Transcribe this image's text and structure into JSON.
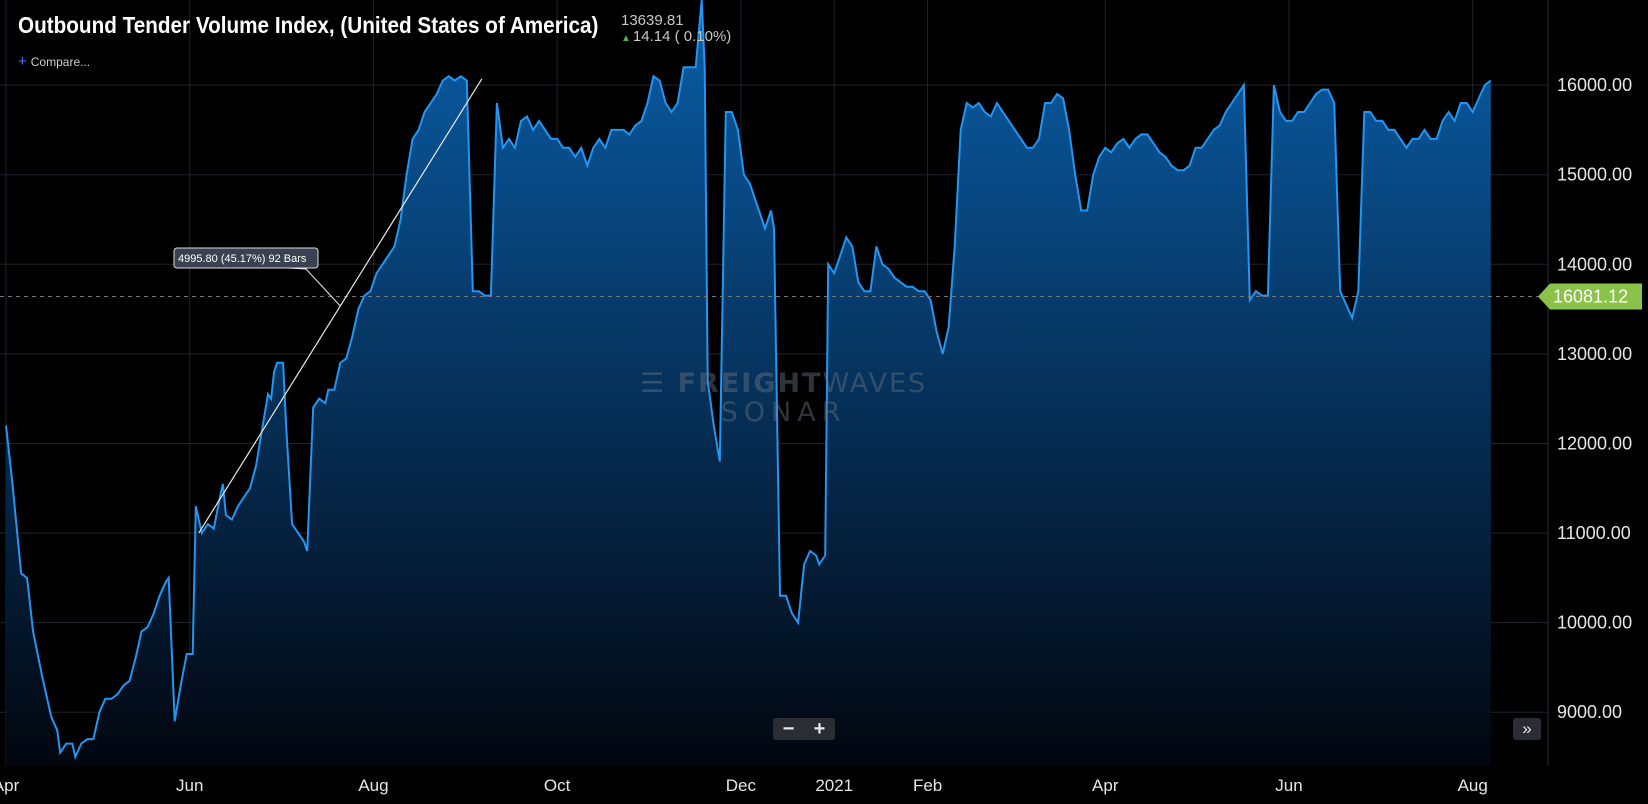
{
  "header": {
    "title": "Outbound Tender Volume Index, (United States of America)",
    "price": "13639.81",
    "change": "14.14 ( 0.10%)",
    "compare_label": "Compare..."
  },
  "watermark": {
    "line1_bold": "FREIGHT",
    "line1_thin": "WAVES",
    "line2": "SONAR"
  },
  "controls": {
    "zoom_out": "−",
    "zoom_in": "+",
    "scroll_right": "»"
  },
  "colors": {
    "line": "#2196f3",
    "fill_top": "#0a5ea8",
    "fill_bottom": "#02060f",
    "last_tag": "#8bc34a"
  },
  "chart_data": {
    "type": "area",
    "y_ticks": [
      "9000.00",
      "10000.00",
      "11000.00",
      "12000.00",
      "13000.00",
      "14000.00",
      "15000.00",
      "16000.00"
    ],
    "ylim": [
      8400,
      16950
    ],
    "x_ticks": [
      {
        "label": "Apr",
        "day": 0
      },
      {
        "label": "Jun",
        "day": 61
      },
      {
        "label": "Aug",
        "day": 122
      },
      {
        "label": "Oct",
        "day": 183
      },
      {
        "label": "Dec",
        "day": 244
      },
      {
        "label": "2021",
        "day": 275
      },
      {
        "label": "Feb",
        "day": 306
      },
      {
        "label": "Apr",
        "day": 365
      },
      {
        "label": "Jun",
        "day": 426
      },
      {
        "label": "Aug",
        "day": 487
      }
    ],
    "x_axis_range_days": [
      -2,
      512
    ],
    "grid": true,
    "crosshair_value": 13639.81,
    "last_value_tag": "16081.12",
    "annotation": {
      "label": "4995.80 (45.17%) 92 Bars",
      "start": {
        "day": 64,
        "value": 11000
      },
      "end": {
        "day": 158,
        "value": 16070
      }
    },
    "series": [
      {
        "points": [
          [
            0,
            12200
          ],
          [
            2,
            11600
          ],
          [
            4,
            10900
          ],
          [
            5,
            10550
          ],
          [
            7,
            10500
          ],
          [
            9,
            9900
          ],
          [
            12,
            9400
          ],
          [
            15,
            8950
          ],
          [
            17,
            8800
          ],
          [
            18,
            8550
          ],
          [
            20,
            8650
          ],
          [
            22,
            8650
          ],
          [
            23,
            8500
          ],
          [
            25,
            8650
          ],
          [
            27,
            8700
          ],
          [
            29,
            8700
          ],
          [
            31,
            9000
          ],
          [
            33,
            9150
          ],
          [
            35,
            9150
          ],
          [
            37,
            9200
          ],
          [
            39,
            9300
          ],
          [
            41,
            9350
          ],
          [
            43,
            9600
          ],
          [
            45,
            9900
          ],
          [
            47,
            9950
          ],
          [
            49,
            10100
          ],
          [
            51,
            10300
          ],
          [
            53,
            10450
          ],
          [
            54,
            10500
          ],
          [
            56,
            8900
          ],
          [
            58,
            9300
          ],
          [
            60,
            9650
          ],
          [
            62,
            9650
          ],
          [
            63,
            11300
          ],
          [
            65,
            11000
          ],
          [
            67,
            11100
          ],
          [
            69,
            11050
          ],
          [
            71,
            11400
          ],
          [
            72,
            11550
          ],
          [
            73,
            11200
          ],
          [
            75,
            11150
          ],
          [
            77,
            11300
          ],
          [
            79,
            11400
          ],
          [
            81,
            11500
          ],
          [
            83,
            11750
          ],
          [
            85,
            12150
          ],
          [
            87,
            12550
          ],
          [
            88,
            12500
          ],
          [
            89,
            12800
          ],
          [
            90,
            12900
          ],
          [
            92,
            12900
          ],
          [
            93,
            12200
          ],
          [
            95,
            11100
          ],
          [
            97,
            11000
          ],
          [
            99,
            10900
          ],
          [
            100,
            10800
          ],
          [
            102,
            12400
          ],
          [
            104,
            12500
          ],
          [
            106,
            12450
          ],
          [
            107,
            12600
          ],
          [
            109,
            12600
          ],
          [
            111,
            12900
          ],
          [
            113,
            12950
          ],
          [
            115,
            13200
          ],
          [
            117,
            13500
          ],
          [
            119,
            13650
          ],
          [
            121,
            13700
          ],
          [
            123,
            13900
          ],
          [
            125,
            14000
          ],
          [
            127,
            14100
          ],
          [
            129,
            14200
          ],
          [
            131,
            14500
          ],
          [
            133,
            15000
          ],
          [
            135,
            15400
          ],
          [
            137,
            15500
          ],
          [
            139,
            15700
          ],
          [
            141,
            15800
          ],
          [
            143,
            15900
          ],
          [
            145,
            16050
          ],
          [
            147,
            16100
          ],
          [
            149,
            16050
          ],
          [
            151,
            16100
          ],
          [
            153,
            16050
          ],
          [
            155,
            13700
          ],
          [
            157,
            13700
          ],
          [
            159,
            13650
          ],
          [
            161,
            13650
          ],
          [
            163,
            15800
          ],
          [
            165,
            15300
          ],
          [
            167,
            15400
          ],
          [
            169,
            15300
          ],
          [
            171,
            15600
          ],
          [
            173,
            15650
          ],
          [
            175,
            15500
          ],
          [
            177,
            15600
          ],
          [
            179,
            15500
          ],
          [
            181,
            15400
          ],
          [
            183,
            15400
          ],
          [
            185,
            15300
          ],
          [
            187,
            15300
          ],
          [
            189,
            15200
          ],
          [
            191,
            15300
          ],
          [
            193,
            15100
          ],
          [
            195,
            15300
          ],
          [
            197,
            15400
          ],
          [
            199,
            15300
          ],
          [
            201,
            15500
          ],
          [
            203,
            15500
          ],
          [
            205,
            15500
          ],
          [
            207,
            15450
          ],
          [
            209,
            15550
          ],
          [
            211,
            15600
          ],
          [
            213,
            15800
          ],
          [
            215,
            16100
          ],
          [
            217,
            16050
          ],
          [
            219,
            15800
          ],
          [
            221,
            15700
          ],
          [
            223,
            15800
          ],
          [
            225,
            16200
          ],
          [
            227,
            16200
          ],
          [
            229,
            16200
          ],
          [
            231,
            16950
          ],
          [
            232,
            16200
          ],
          [
            233,
            12700
          ],
          [
            235,
            12200
          ],
          [
            237,
            11800
          ],
          [
            239,
            15700
          ],
          [
            241,
            15700
          ],
          [
            243,
            15500
          ],
          [
            245,
            15000
          ],
          [
            247,
            14900
          ],
          [
            249,
            14700
          ],
          [
            251,
            14500
          ],
          [
            252,
            14400
          ],
          [
            254,
            14600
          ],
          [
            255,
            14400
          ],
          [
            257,
            10300
          ],
          [
            259,
            10300
          ],
          [
            261,
            10100
          ],
          [
            263,
            10000
          ],
          [
            265,
            10650
          ],
          [
            267,
            10800
          ],
          [
            269,
            10750
          ],
          [
            270,
            10650
          ],
          [
            272,
            10750
          ],
          [
            273,
            14000
          ],
          [
            275,
            13900
          ],
          [
            277,
            14100
          ],
          [
            279,
            14300
          ],
          [
            281,
            14200
          ],
          [
            283,
            13800
          ],
          [
            285,
            13700
          ],
          [
            287,
            13700
          ],
          [
            289,
            14200
          ],
          [
            291,
            14000
          ],
          [
            293,
            13950
          ],
          [
            295,
            13850
          ],
          [
            297,
            13800
          ],
          [
            299,
            13750
          ],
          [
            301,
            13750
          ],
          [
            303,
            13700
          ],
          [
            305,
            13700
          ],
          [
            307,
            13600
          ],
          [
            309,
            13250
          ],
          [
            311,
            13000
          ],
          [
            313,
            13300
          ],
          [
            315,
            14200
          ],
          [
            317,
            15500
          ],
          [
            319,
            15800
          ],
          [
            321,
            15750
          ],
          [
            323,
            15800
          ],
          [
            325,
            15700
          ],
          [
            327,
            15650
          ],
          [
            329,
            15800
          ],
          [
            331,
            15700
          ],
          [
            333,
            15600
          ],
          [
            335,
            15500
          ],
          [
            337,
            15400
          ],
          [
            339,
            15300
          ],
          [
            341,
            15300
          ],
          [
            343,
            15400
          ],
          [
            345,
            15800
          ],
          [
            347,
            15800
          ],
          [
            349,
            15900
          ],
          [
            351,
            15850
          ],
          [
            353,
            15500
          ],
          [
            355,
            15000
          ],
          [
            357,
            14600
          ],
          [
            359,
            14600
          ],
          [
            361,
            15000
          ],
          [
            363,
            15200
          ],
          [
            365,
            15300
          ],
          [
            367,
            15250
          ],
          [
            369,
            15350
          ],
          [
            371,
            15400
          ],
          [
            373,
            15300
          ],
          [
            375,
            15400
          ],
          [
            377,
            15450
          ],
          [
            379,
            15450
          ],
          [
            381,
            15350
          ],
          [
            383,
            15250
          ],
          [
            385,
            15200
          ],
          [
            387,
            15100
          ],
          [
            389,
            15050
          ],
          [
            391,
            15050
          ],
          [
            393,
            15100
          ],
          [
            395,
            15300
          ],
          [
            397,
            15300
          ],
          [
            399,
            15400
          ],
          [
            401,
            15500
          ],
          [
            403,
            15550
          ],
          [
            405,
            15700
          ],
          [
            407,
            15800
          ],
          [
            409,
            15900
          ],
          [
            411,
            16000
          ],
          [
            413,
            13600
          ],
          [
            415,
            13700
          ],
          [
            417,
            13650
          ],
          [
            419,
            13650
          ],
          [
            421,
            16000
          ],
          [
            423,
            15700
          ],
          [
            425,
            15600
          ],
          [
            427,
            15600
          ],
          [
            429,
            15700
          ],
          [
            431,
            15700
          ],
          [
            433,
            15800
          ],
          [
            435,
            15900
          ],
          [
            437,
            15950
          ],
          [
            439,
            15950
          ],
          [
            441,
            15800
          ],
          [
            443,
            13700
          ],
          [
            445,
            13550
          ],
          [
            447,
            13400
          ],
          [
            449,
            13700
          ],
          [
            451,
            15700
          ],
          [
            453,
            15700
          ],
          [
            455,
            15600
          ],
          [
            457,
            15600
          ],
          [
            459,
            15500
          ],
          [
            461,
            15500
          ],
          [
            463,
            15400
          ],
          [
            465,
            15300
          ],
          [
            467,
            15400
          ],
          [
            469,
            15400
          ],
          [
            471,
            15500
          ],
          [
            473,
            15400
          ],
          [
            475,
            15400
          ],
          [
            477,
            15600
          ],
          [
            479,
            15700
          ],
          [
            481,
            15600
          ],
          [
            483,
            15800
          ],
          [
            485,
            15800
          ],
          [
            487,
            15700
          ],
          [
            489,
            15850
          ],
          [
            491,
            16000
          ],
          [
            493,
            16050
          ]
        ]
      }
    ]
  }
}
